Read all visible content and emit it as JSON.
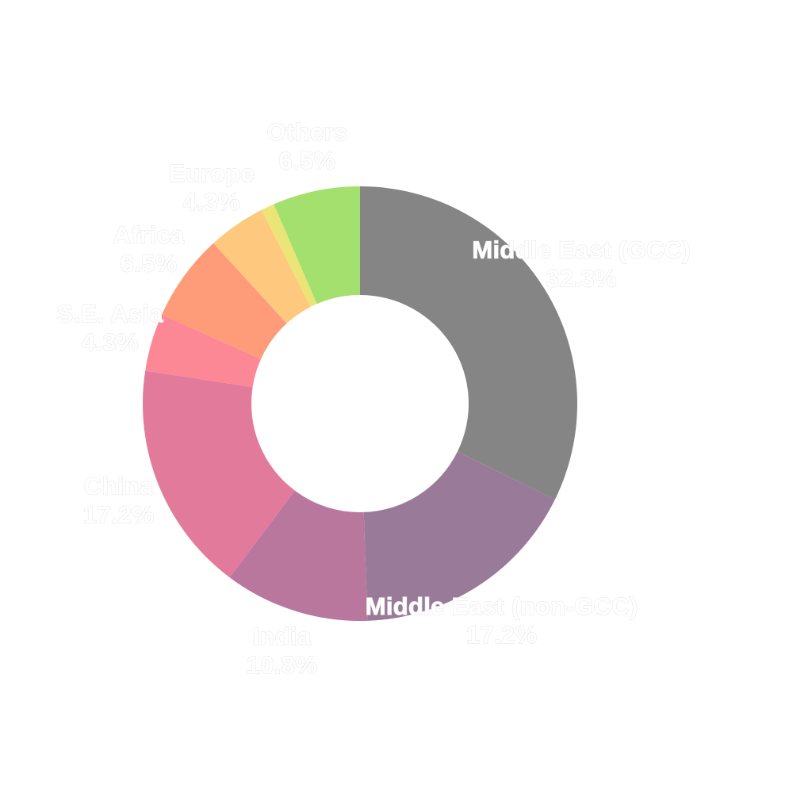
{
  "chart_data": {
    "type": "pie",
    "donut": true,
    "title": "",
    "legend": "none",
    "categories": [
      "Middle East (GCC)",
      "Middle East (non-GCC)",
      "India",
      "China",
      "S.E. Asia",
      "Africa",
      "Europe",
      "Others"
    ],
    "values": [
      32.3,
      17.2,
      10.8,
      17.2,
      4.3,
      6.5,
      4.3,
      6.5
    ],
    "value_labels": [
      "32.3%",
      "17.2%",
      "10.8%",
      "17.2%",
      "4.3%",
      "6.5%",
      "4.3%",
      "6.5%"
    ],
    "colors": [
      "#858585",
      "#9a7a99",
      "#b9779e",
      "#e27a9c",
      "#fd8895",
      "#fe9b78",
      "#fec97e",
      "#a4e06d"
    ],
    "extra_slices": [
      {
        "after": "Europe",
        "value": 1.0,
        "color": "#ebe577"
      }
    ],
    "label_color": "#ffffff"
  }
}
